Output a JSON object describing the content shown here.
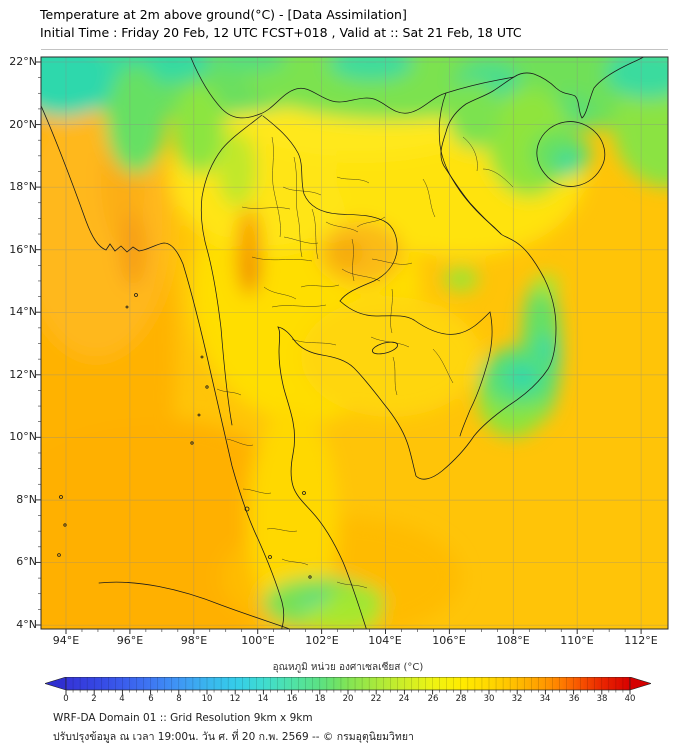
{
  "header": {
    "title": "Temperature at 2m above ground(°C) - [Data Assimilation]",
    "subtitle": "Initial Time : Friday 20 Feb, 12 UTC FCST+018 , Valid at :: Sat 21 Feb, 18 UTC"
  },
  "map": {
    "lat_labels": [
      "22°N",
      "20°N",
      "18°N",
      "16°N",
      "14°N",
      "12°N",
      "10°N",
      "8°N",
      "6°N",
      "4°N"
    ],
    "lon_labels": [
      "94°E",
      "96°E",
      "98°E",
      "100°E",
      "102°E",
      "104°E",
      "106°E",
      "108°E",
      "110°E",
      "112°E"
    ]
  },
  "colorbar": {
    "label": "อุณหภูมิ หน่วย องศาเซลเซียส (°C)",
    "ticks": [
      "0",
      "2",
      "4",
      "6",
      "8",
      "10",
      "12",
      "14",
      "16",
      "18",
      "20",
      "22",
      "24",
      "26",
      "28",
      "30",
      "32",
      "34",
      "36",
      "38",
      "40"
    ],
    "unit": "°C",
    "range_min": 0,
    "range_max": 40,
    "under_arrow_color": "#3030D0",
    "over_arrow_color": "#D40000"
  },
  "footer": {
    "line1": "WRF-DA Domain 01 :: Grid Resolution 9km x 9km",
    "line2": "ปรับปรุงข้อมูล ณ เวลา 19:00น. วัน ศ. ที่ 20 ก.พ. 2569 -- © กรมอุตุนิยมวิทยา"
  },
  "chart_data": {
    "type": "heatmap",
    "title": "Temperature at 2m above ground(°C) - [Data Assimilation]",
    "valid_time": "Sat 21 Feb, 18 UTC",
    "lat_range_deg_n": [
      4,
      22
    ],
    "lon_range_deg_e": [
      93.2,
      112.8
    ],
    "colorbar_ticks_c": [
      0,
      2,
      4,
      6,
      8,
      10,
      12,
      14,
      16,
      18,
      20,
      22,
      24,
      26,
      28,
      30,
      32,
      34,
      36,
      38,
      40
    ],
    "regions": [
      {
        "area": "Bay of Bengal / Andaman Sea (west of ~97°E)",
        "approx_temp_c": 31
      },
      {
        "area": "Northern mountain band: N Myanmar, S China, N Laos, N Vietnam (above ~20°N)",
        "approx_temp_c": 17
      },
      {
        "area": "Coolest teal pockets along the top edge",
        "approx_temp_c": 14
      },
      {
        "area": "Central / Northeast Thailand lowlands",
        "approx_temp_c": 28
      },
      {
        "area": "Western Thailand - Myanmar border warm streak (~16°N, 98.5°E)",
        "approx_temp_c": 33
      },
      {
        "area": "Gulf of Thailand and South China Sea",
        "approx_temp_c": 30
      },
      {
        "area": "Vietnam coastal green strip (11-14°N)",
        "approx_temp_c": 22
      },
      {
        "area": "South Vietnam highland teal spot (~11.5°N, 107.5°E)",
        "approx_temp_c": 16
      },
      {
        "area": "Hainan island interior teal spot (~19°N, 110°E)",
        "approx_temp_c": 18
      },
      {
        "area": "Sumatra / Malaysia highland green spots",
        "approx_temp_c": 21
      }
    ]
  }
}
